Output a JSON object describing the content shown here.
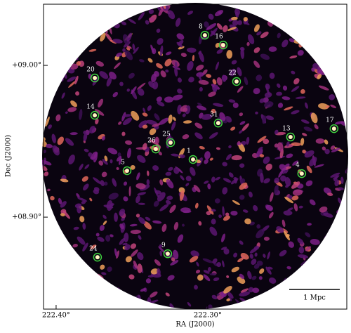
{
  "chart_data": {
    "type": "scatter",
    "xlabel": "RA (J2000)",
    "ylabel": "Dec (J2000)",
    "xlim": [
      222.4083,
      222.2083
    ],
    "ylim": [
      8.8394,
      9.0403
    ],
    "xticks": [
      {
        "value": 222.4,
        "label": "222.40°"
      },
      {
        "value": 222.3,
        "label": "222.30°"
      }
    ],
    "yticks": [
      {
        "value": 8.9,
        "label": "+08.90°"
      },
      {
        "value": 9.0,
        "label": "+09.00°"
      }
    ],
    "point_labels": [
      "8",
      "16",
      "20",
      "22",
      "14",
      "31",
      "13",
      "17",
      "25",
      "26",
      "1",
      "5",
      "4",
      "9",
      "24"
    ],
    "x": [
      222.3019,
      222.2898,
      222.3745,
      222.281,
      222.3745,
      222.2931,
      222.2454,
      222.2167,
      222.3245,
      222.3343,
      222.3097,
      222.3532,
      222.238,
      222.3264,
      222.3727
    ],
    "values": [
      9.0199,
      9.0134,
      8.9917,
      8.9894,
      8.9671,
      8.962,
      8.9528,
      8.9583,
      8.9491,
      8.9449,
      8.938,
      8.9306,
      8.9287,
      8.8759,
      8.8736
    ],
    "color": "#3fd13f",
    "scale_bar_label": "1 Mpc"
  }
}
